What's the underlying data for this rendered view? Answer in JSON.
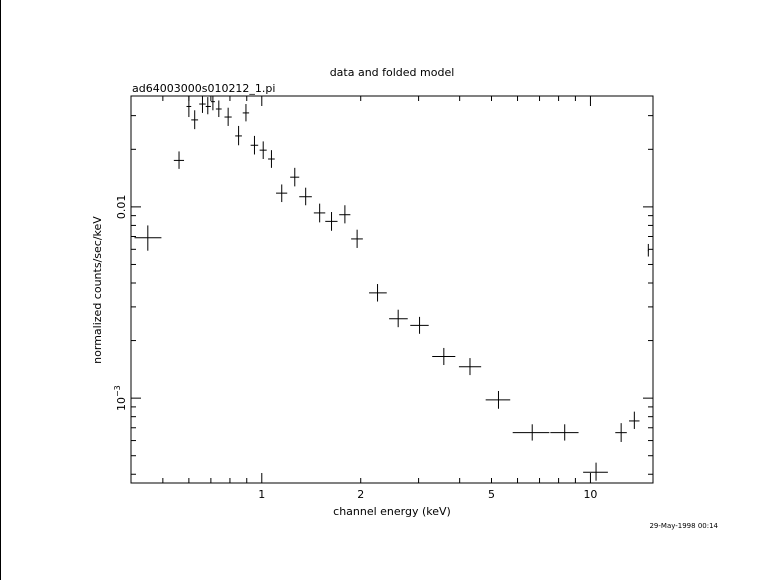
{
  "chart_data": {
    "type": "scatter",
    "title": "data and folded model",
    "subtitle": "ad64003000s010212_1.pi",
    "xlabel": "channel energy (keV)",
    "ylabel": "normalized counts/sec/keV",
    "xscale": "log",
    "yscale": "log",
    "xlim": [
      0.4,
      15.5
    ],
    "ylim": [
      0.00036,
      0.038
    ],
    "x_tick_labels": [
      {
        "value": 1,
        "label": "1"
      },
      {
        "value": 2,
        "label": "2"
      },
      {
        "value": 5,
        "label": "5"
      },
      {
        "value": 10,
        "label": "10"
      }
    ],
    "y_tick_labels": [
      {
        "value": 0.01,
        "label": "0.01"
      },
      {
        "value": 0.001,
        "label": "10",
        "exponent": "−3"
      }
    ],
    "grid": false,
    "timestamp": "29-May-1998 00:14",
    "series": [
      {
        "points": [
          {
            "x": 0.45,
            "xlo": 0.41,
            "xhi": 0.495,
            "y": 0.0069,
            "ylo": 0.0059,
            "yhi": 0.008
          },
          {
            "x": 0.56,
            "xlo": 0.54,
            "xhi": 0.58,
            "y": 0.0175,
            "ylo": 0.0158,
            "yhi": 0.0195
          },
          {
            "x": 0.6,
            "xlo": 0.59,
            "xhi": 0.61,
            "y": 0.0335,
            "ylo": 0.0295,
            "yhi": 0.038
          },
          {
            "x": 0.625,
            "xlo": 0.61,
            "xhi": 0.64,
            "y": 0.0285,
            "ylo": 0.0255,
            "yhi": 0.032
          },
          {
            "x": 0.66,
            "xlo": 0.645,
            "xhi": 0.675,
            "y": 0.0345,
            "ylo": 0.031,
            "yhi": 0.038
          },
          {
            "x": 0.685,
            "xlo": 0.675,
            "xhi": 0.7,
            "y": 0.0335,
            "ylo": 0.0305,
            "yhi": 0.0375
          },
          {
            "x": 0.71,
            "xlo": 0.7,
            "xhi": 0.72,
            "y": 0.0355,
            "ylo": 0.032,
            "yhi": 0.038
          },
          {
            "x": 0.74,
            "xlo": 0.725,
            "xhi": 0.755,
            "y": 0.0325,
            "ylo": 0.0295,
            "yhi": 0.036
          },
          {
            "x": 0.79,
            "xlo": 0.77,
            "xhi": 0.81,
            "y": 0.0295,
            "ylo": 0.0265,
            "yhi": 0.033
          },
          {
            "x": 0.85,
            "xlo": 0.83,
            "xhi": 0.87,
            "y": 0.0235,
            "ylo": 0.021,
            "yhi": 0.0265
          },
          {
            "x": 0.895,
            "xlo": 0.875,
            "xhi": 0.915,
            "y": 0.031,
            "ylo": 0.028,
            "yhi": 0.0345
          },
          {
            "x": 0.95,
            "xlo": 0.925,
            "xhi": 0.975,
            "y": 0.021,
            "ylo": 0.0188,
            "yhi": 0.0235
          },
          {
            "x": 1.01,
            "xlo": 0.985,
            "xhi": 1.035,
            "y": 0.0198,
            "ylo": 0.0178,
            "yhi": 0.022
          },
          {
            "x": 1.07,
            "xlo": 1.045,
            "xhi": 1.095,
            "y": 0.0178,
            "ylo": 0.016,
            "yhi": 0.0198
          },
          {
            "x": 1.15,
            "xlo": 1.105,
            "xhi": 1.195,
            "y": 0.0118,
            "ylo": 0.0106,
            "yhi": 0.0131
          },
          {
            "x": 1.26,
            "xlo": 1.22,
            "xhi": 1.3,
            "y": 0.0143,
            "ylo": 0.0128,
            "yhi": 0.016
          },
          {
            "x": 1.36,
            "xlo": 1.3,
            "xhi": 1.42,
            "y": 0.0113,
            "ylo": 0.0102,
            "yhi": 0.0126
          },
          {
            "x": 1.5,
            "xlo": 1.44,
            "xhi": 1.56,
            "y": 0.0093,
            "ylo": 0.0083,
            "yhi": 0.0104
          },
          {
            "x": 1.63,
            "xlo": 1.56,
            "xhi": 1.7,
            "y": 0.0084,
            "ylo": 0.0075,
            "yhi": 0.0094
          },
          {
            "x": 1.79,
            "xlo": 1.72,
            "xhi": 1.86,
            "y": 0.0091,
            "ylo": 0.0082,
            "yhi": 0.0102
          },
          {
            "x": 1.95,
            "xlo": 1.87,
            "xhi": 2.03,
            "y": 0.0068,
            "ylo": 0.0061,
            "yhi": 0.0076
          },
          {
            "x": 2.25,
            "xlo": 2.12,
            "xhi": 2.4,
            "y": 0.00355,
            "ylo": 0.0032,
            "yhi": 0.00395
          },
          {
            "x": 2.6,
            "xlo": 2.44,
            "xhi": 2.78,
            "y": 0.0026,
            "ylo": 0.00235,
            "yhi": 0.0029
          },
          {
            "x": 3.02,
            "xlo": 2.83,
            "xhi": 3.22,
            "y": 0.0024,
            "ylo": 0.00217,
            "yhi": 0.00266
          },
          {
            "x": 3.58,
            "xlo": 3.3,
            "xhi": 3.88,
            "y": 0.00165,
            "ylo": 0.00149,
            "yhi": 0.00183
          },
          {
            "x": 4.3,
            "xlo": 3.98,
            "xhi": 4.65,
            "y": 0.00146,
            "ylo": 0.00132,
            "yhi": 0.00162
          },
          {
            "x": 5.25,
            "xlo": 4.8,
            "xhi": 5.7,
            "y": 0.00098,
            "ylo": 0.00088,
            "yhi": 0.00109
          },
          {
            "x": 6.65,
            "xlo": 5.8,
            "xhi": 7.5,
            "y": 0.00066,
            "ylo": 0.0006,
            "yhi": 0.00073
          },
          {
            "x": 8.35,
            "xlo": 7.55,
            "xhi": 9.2,
            "y": 0.00066,
            "ylo": 0.0006,
            "yhi": 0.00073
          },
          {
            "x": 10.4,
            "xlo": 9.5,
            "xhi": 11.3,
            "y": 0.00041,
            "ylo": 0.00037,
            "yhi": 0.00046
          },
          {
            "x": 12.4,
            "xlo": 11.9,
            "xhi": 12.9,
            "y": 0.00066,
            "ylo": 0.00059,
            "yhi": 0.00074
          },
          {
            "x": 13.6,
            "xlo": 13.1,
            "xhi": 14.1,
            "y": 0.00076,
            "ylo": 0.00069,
            "yhi": 0.00085
          },
          {
            "x": 15.0,
            "xlo": 14.95,
            "xhi": 15.05,
            "y": 0.0059,
            "ylo": 0.0055,
            "yhi": 0.0064
          }
        ]
      }
    ]
  }
}
